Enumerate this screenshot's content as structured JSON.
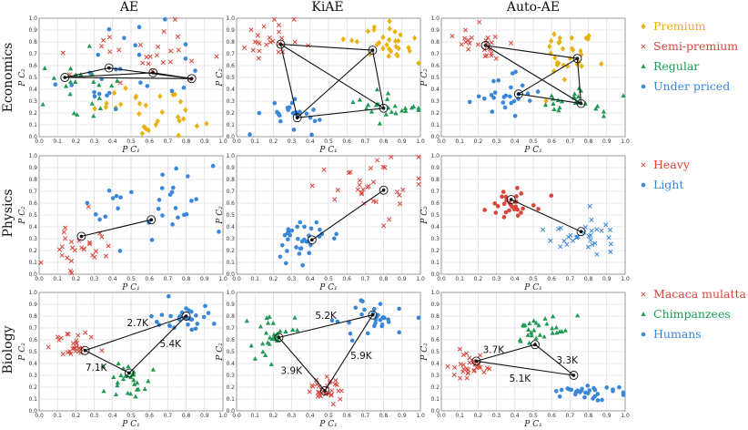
{
  "figure": {
    "columns": [
      "AE",
      "KiAE",
      "Auto-AE"
    ],
    "rows": [
      "Economics",
      "Physics",
      "Biology"
    ],
    "xlabel": "P C₁",
    "ylabel": "P C₂"
  },
  "colors": {
    "Premium": "#e8b10c",
    "Semi-premium": "#d9443a",
    "Regular": "#1e9a55",
    "Under priced": "#3a86d9",
    "Heavy": "#d9443a",
    "Light": "#3a86d9",
    "Macaca mulatta": "#d9443a",
    "Chimpanzees": "#1e9a55",
    "Humans": "#3a86d9"
  },
  "legends": [
    {
      "row": "Economics",
      "entries": [
        {
          "label": "Premium",
          "marker": "diamond",
          "color": "#e8b10c",
          "text_color": "#e8b10c"
        },
        {
          "label": "Semi-premium",
          "marker": "x",
          "color": "#d9443a",
          "text_color": "#d9443a"
        },
        {
          "label": "Regular",
          "marker": "triangle",
          "color": "#1e9a55",
          "text_color": "#1e9a55"
        },
        {
          "label": "Under priced",
          "marker": "circle",
          "color": "#3a86d9",
          "text_color": "#3a86d9"
        }
      ]
    },
    {
      "row": "Physics",
      "entries": [
        {
          "label": "Heavy",
          "marker": "x",
          "color": "#d9443a",
          "text_color": "#d9443a"
        },
        {
          "label": "Light",
          "marker": "circle",
          "color": "#3a86d9",
          "text_color": "#3a86d9"
        }
      ]
    },
    {
      "row": "Biology",
      "entries": [
        {
          "label": "Macaca mulatta",
          "marker": "x",
          "color": "#d9443a",
          "text_color": "#d9443a"
        },
        {
          "label": "Chimpanzees",
          "marker": "triangle",
          "color": "#1e9a55",
          "text_color": "#1e9a55"
        },
        {
          "label": "Humans",
          "marker": "circle",
          "color": "#3a86d9",
          "text_color": "#3a86d9"
        }
      ]
    }
  ],
  "chart_data": [
    {
      "type": "scatter",
      "row": "Economics",
      "column": "AE",
      "xlim": [
        0,
        1
      ],
      "ylim": [
        0,
        1
      ],
      "xlabel": "P C₁",
      "ylabel": "P C₂",
      "clusters": [
        {
          "name": "Premium",
          "marker": "diamond",
          "cx": 0.62,
          "cy": 0.22,
          "sx": 0.14,
          "sy": 0.12,
          "n": 30
        },
        {
          "name": "Semi-premium",
          "marker": "x",
          "cx": 0.55,
          "cy": 0.72,
          "sx": 0.22,
          "sy": 0.14,
          "n": 26
        },
        {
          "name": "Regular",
          "marker": "triangle",
          "cx": 0.2,
          "cy": 0.4,
          "sx": 0.12,
          "sy": 0.16,
          "n": 22
        },
        {
          "name": "Under priced",
          "marker": "circle",
          "cx": 0.38,
          "cy": 0.55,
          "sx": 0.18,
          "sy": 0.18,
          "n": 26
        }
      ],
      "centroids": [
        [
          0.14,
          0.5
        ],
        [
          0.38,
          0.58
        ],
        [
          0.62,
          0.54
        ],
        [
          0.83,
          0.49
        ]
      ],
      "edges": [
        [
          0,
          1
        ],
        [
          1,
          3
        ],
        [
          0,
          3
        ],
        [
          0,
          2
        ],
        [
          2,
          3
        ]
      ],
      "edge_labels": []
    },
    {
      "type": "scatter",
      "row": "Economics",
      "column": "KiAE",
      "xlim": [
        0,
        1
      ],
      "ylim": [
        0,
        1
      ],
      "xlabel": "P C₁",
      "ylabel": "P C₂",
      "clusters": [
        {
          "name": "Premium",
          "marker": "diamond",
          "cx": 0.8,
          "cy": 0.78,
          "sx": 0.1,
          "sy": 0.1,
          "n": 30
        },
        {
          "name": "Semi-premium",
          "marker": "x",
          "cx": 0.18,
          "cy": 0.82,
          "sx": 0.08,
          "sy": 0.08,
          "n": 24
        },
        {
          "name": "Regular",
          "marker": "triangle",
          "cx": 0.78,
          "cy": 0.22,
          "sx": 0.12,
          "sy": 0.06,
          "n": 24
        },
        {
          "name": "Under priced",
          "marker": "circle",
          "cx": 0.3,
          "cy": 0.18,
          "sx": 0.07,
          "sy": 0.06,
          "n": 26
        }
      ],
      "centroids": [
        [
          0.24,
          0.78
        ],
        [
          0.74,
          0.73
        ],
        [
          0.8,
          0.24
        ],
        [
          0.33,
          0.16
        ]
      ],
      "edges": [
        [
          0,
          1
        ],
        [
          1,
          2
        ],
        [
          2,
          3
        ],
        [
          3,
          0
        ],
        [
          0,
          2
        ],
        [
          1,
          3
        ]
      ],
      "edge_labels": []
    },
    {
      "type": "scatter",
      "row": "Economics",
      "column": "Auto-AE",
      "xlim": [
        0,
        1
      ],
      "ylim": [
        0,
        1
      ],
      "xlabel": "P C₁",
      "ylabel": "P C₂",
      "clusters": [
        {
          "name": "Premium",
          "marker": "diamond",
          "cx": 0.72,
          "cy": 0.72,
          "sx": 0.1,
          "sy": 0.12,
          "n": 30
        },
        {
          "name": "Semi-premium",
          "marker": "x",
          "cx": 0.2,
          "cy": 0.8,
          "sx": 0.08,
          "sy": 0.09,
          "n": 24
        },
        {
          "name": "Regular",
          "marker": "triangle",
          "cx": 0.72,
          "cy": 0.28,
          "sx": 0.1,
          "sy": 0.06,
          "n": 24
        },
        {
          "name": "Under priced",
          "marker": "circle",
          "cx": 0.35,
          "cy": 0.35,
          "sx": 0.08,
          "sy": 0.08,
          "n": 26
        }
      ],
      "centroids": [
        [
          0.24,
          0.77
        ],
        [
          0.74,
          0.66
        ],
        [
          0.76,
          0.28
        ],
        [
          0.42,
          0.36
        ]
      ],
      "edges": [
        [
          0,
          1
        ],
        [
          1,
          2
        ],
        [
          2,
          3
        ],
        [
          3,
          1
        ],
        [
          0,
          2
        ]
      ],
      "edge_labels": []
    },
    {
      "type": "scatter",
      "row": "Physics",
      "column": "AE",
      "xlim": [
        0,
        1
      ],
      "ylim": [
        0,
        1
      ],
      "xlabel": "P C₁",
      "ylabel": "P C₂",
      "clusters": [
        {
          "name": "Heavy",
          "marker": "x",
          "cx": 0.22,
          "cy": 0.22,
          "sx": 0.12,
          "sy": 0.12,
          "n": 28
        },
        {
          "name": "Light",
          "marker": "circle",
          "cx": 0.6,
          "cy": 0.58,
          "sx": 0.18,
          "sy": 0.18,
          "n": 32
        }
      ],
      "centroids": [
        [
          0.23,
          0.32
        ],
        [
          0.61,
          0.46
        ]
      ],
      "edges": [
        [
          0,
          1
        ]
      ],
      "edge_labels": []
    },
    {
      "type": "scatter",
      "row": "Physics",
      "column": "KiAE",
      "xlim": [
        0,
        1
      ],
      "ylim": [
        0,
        1
      ],
      "xlabel": "P C₁",
      "ylabel": "P C₂",
      "clusters": [
        {
          "name": "Heavy",
          "marker": "x",
          "cx": 0.72,
          "cy": 0.72,
          "sx": 0.14,
          "sy": 0.14,
          "n": 32
        },
        {
          "name": "Light",
          "marker": "circle",
          "cx": 0.35,
          "cy": 0.3,
          "sx": 0.1,
          "sy": 0.1,
          "n": 34
        }
      ],
      "centroids": [
        [
          0.41,
          0.29
        ],
        [
          0.8,
          0.71
        ]
      ],
      "edges": [
        [
          0,
          1
        ]
      ],
      "edge_labels": []
    },
    {
      "type": "scatter",
      "row": "Physics",
      "column": "Auto-AE",
      "xlim": [
        0,
        1
      ],
      "ylim": [
        0,
        1
      ],
      "xlabel": "P C₁",
      "ylabel": "P C₂",
      "clusters": [
        {
          "name": "Heavy",
          "marker": "circle_red",
          "cx": 0.38,
          "cy": 0.6,
          "sx": 0.1,
          "sy": 0.07,
          "n": 30
        },
        {
          "name": "Light",
          "marker": "x_blue",
          "cx": 0.78,
          "cy": 0.34,
          "sx": 0.1,
          "sy": 0.08,
          "n": 32
        }
      ],
      "centroids": [
        [
          0.38,
          0.63
        ],
        [
          0.76,
          0.36
        ]
      ],
      "edges": [
        [
          0,
          1
        ]
      ],
      "edge_labels": []
    },
    {
      "type": "scatter",
      "row": "Biology",
      "column": "AE",
      "xlim": [
        0,
        1
      ],
      "ylim": [
        0,
        1
      ],
      "xlabel": "P C₁",
      "ylabel": "P C₂",
      "clusters": [
        {
          "name": "Macaca mulatta",
          "marker": "x",
          "cx": 0.2,
          "cy": 0.55,
          "sx": 0.06,
          "sy": 0.06,
          "n": 28
        },
        {
          "name": "Chimpanzees",
          "marker": "triangle",
          "cx": 0.46,
          "cy": 0.25,
          "sx": 0.07,
          "sy": 0.08,
          "n": 28
        },
        {
          "name": "Humans",
          "marker": "circle",
          "cx": 0.78,
          "cy": 0.8,
          "sx": 0.09,
          "sy": 0.07,
          "n": 30
        }
      ],
      "centroids": [
        [
          0.25,
          0.51
        ],
        [
          0.49,
          0.32
        ],
        [
          0.8,
          0.8
        ]
      ],
      "edges": [
        [
          0,
          1
        ],
        [
          1,
          2
        ],
        [
          0,
          2
        ]
      ],
      "edge_labels": [
        "7.1K",
        "5.4K",
        "2.7K"
      ]
    },
    {
      "type": "scatter",
      "row": "Biology",
      "column": "KiAE",
      "xlim": [
        0,
        1
      ],
      "ylim": [
        0,
        1
      ],
      "xlabel": "P C₁",
      "ylabel": "P C₂",
      "clusters": [
        {
          "name": "Macaca mulatta",
          "marker": "x",
          "cx": 0.47,
          "cy": 0.18,
          "sx": 0.05,
          "sy": 0.05,
          "n": 30
        },
        {
          "name": "Chimpanzees",
          "marker": "triangle",
          "cx": 0.2,
          "cy": 0.62,
          "sx": 0.07,
          "sy": 0.09,
          "n": 30
        },
        {
          "name": "Humans",
          "marker": "circle",
          "cx": 0.76,
          "cy": 0.78,
          "sx": 0.09,
          "sy": 0.08,
          "n": 30
        }
      ],
      "centroids": [
        [
          0.23,
          0.62
        ],
        [
          0.74,
          0.81
        ],
        [
          0.48,
          0.17
        ]
      ],
      "edges": [
        [
          0,
          1
        ],
        [
          1,
          2
        ],
        [
          2,
          0
        ]
      ],
      "edge_labels": [
        "5.2K",
        "5.9K",
        "3.9K"
      ]
    },
    {
      "type": "scatter",
      "row": "Biology",
      "column": "Auto-AE",
      "xlim": [
        0,
        1
      ],
      "ylim": [
        0,
        1
      ],
      "xlabel": "P C₁",
      "ylabel": "P C₂",
      "clusters": [
        {
          "name": "Macaca mulatta",
          "marker": "x",
          "cx": 0.16,
          "cy": 0.38,
          "sx": 0.05,
          "sy": 0.07,
          "n": 30
        },
        {
          "name": "Chimpanzees",
          "marker": "triangle",
          "cx": 0.55,
          "cy": 0.66,
          "sx": 0.08,
          "sy": 0.06,
          "n": 30
        },
        {
          "name": "Humans",
          "marker": "circle",
          "cx": 0.8,
          "cy": 0.16,
          "sx": 0.1,
          "sy": 0.04,
          "n": 30
        }
      ],
      "centroids": [
        [
          0.19,
          0.42
        ],
        [
          0.51,
          0.56
        ],
        [
          0.72,
          0.3
        ]
      ],
      "edges": [
        [
          0,
          1
        ],
        [
          1,
          2
        ],
        [
          2,
          0
        ]
      ],
      "edge_labels": [
        "3.7K",
        "3.3K",
        "5.1K"
      ]
    }
  ]
}
